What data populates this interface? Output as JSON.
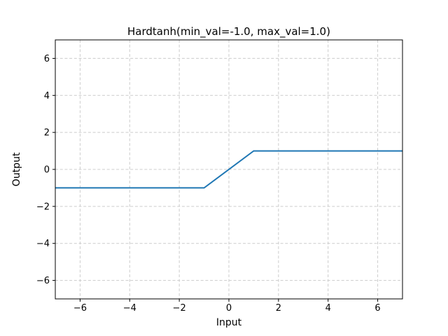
{
  "chart_data": {
    "type": "line",
    "title": "Hardtanh(min_val=-1.0, max_val=1.0)",
    "xlabel": "Input",
    "ylabel": "Output",
    "xlim": [
      -7,
      7
    ],
    "ylim": [
      -7,
      7
    ],
    "x_ticks": [
      -6,
      -4,
      -2,
      0,
      2,
      4,
      6
    ],
    "y_ticks": [
      -6,
      -4,
      -2,
      0,
      2,
      4,
      6
    ],
    "grid": true,
    "grid_style": "dashed",
    "legend": "none",
    "series": [
      {
        "name": "Hardtanh",
        "x": [
          -7,
          -1,
          1,
          7
        ],
        "y": [
          -1,
          -1,
          1,
          1
        ],
        "color": "#1f77b4",
        "line_width": 2
      }
    ],
    "colors": {
      "line": "#1f77b4",
      "grid": "#cccccc",
      "axis": "#000000",
      "text": "#000000",
      "background": "#ffffff"
    }
  }
}
